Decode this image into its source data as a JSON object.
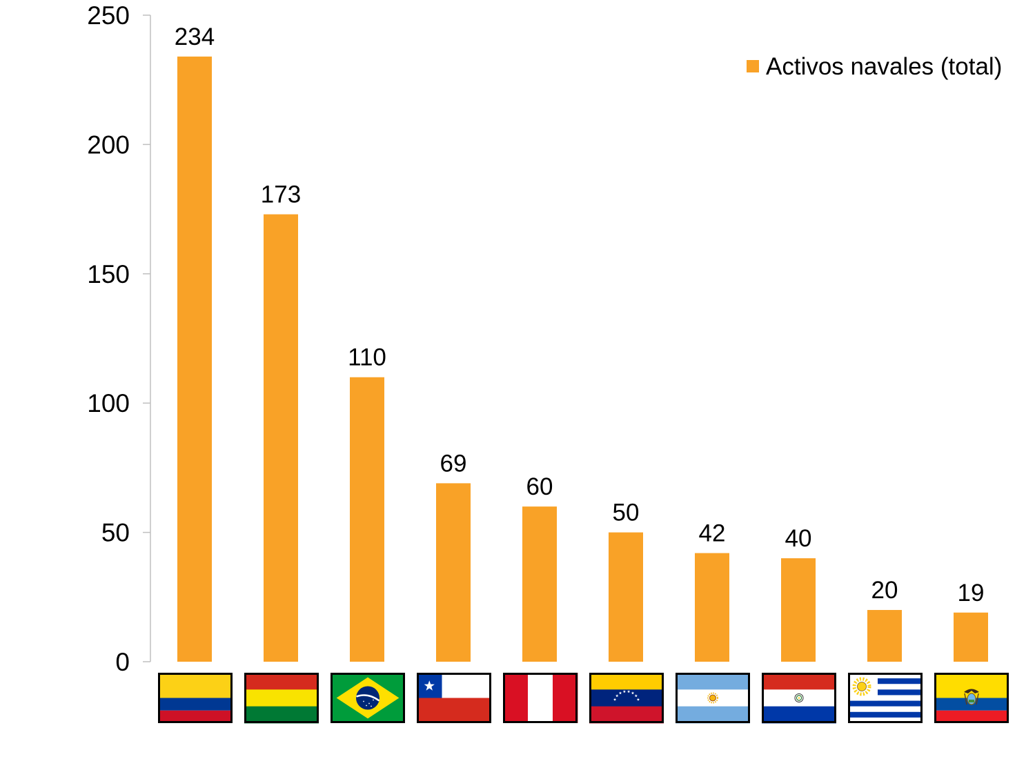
{
  "chart_data": {
    "type": "bar",
    "category_icons": [
      "colombia-flag-icon",
      "bolivia-flag-icon",
      "brazil-flag-icon",
      "chile-flag-icon",
      "peru-flag-icon",
      "venezuela-flag-icon",
      "argentina-flag-icon",
      "paraguay-flag-icon",
      "uruguay-flag-icon",
      "ecuador-flag-icon"
    ],
    "series": [
      {
        "name": "Activos navales (total)",
        "values": [
          234,
          173,
          110,
          69,
          60,
          50,
          42,
          40,
          20,
          19
        ],
        "color": "#F9A227"
      }
    ],
    "ylim": [
      0,
      250
    ],
    "yticks": [
      0,
      50,
      100,
      150,
      200,
      250
    ],
    "grid": false,
    "legend": "top-right",
    "data_labels": true
  }
}
